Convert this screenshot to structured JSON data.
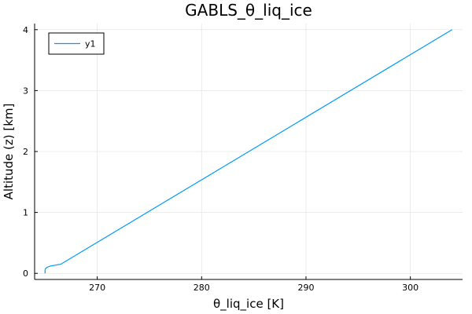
{
  "chart_data": {
    "type": "line",
    "title": "GABLS_θ_liq_ice",
    "xlabel": "θ_liq_ice [K]",
    "ylabel": "Altitude (z) [km]",
    "xlim": [
      264.0,
      305.0
    ],
    "ylim": [
      -0.1,
      4.1
    ],
    "xticks": [
      270,
      280,
      290,
      300
    ],
    "yticks": [
      0,
      1,
      2,
      3,
      4
    ],
    "grid": true,
    "legend_position": "top-left",
    "series": [
      {
        "name": "y1",
        "color": "#009AFA",
        "x": [
          265.0,
          265.0,
          265.0,
          265.05,
          265.2,
          265.5,
          266.5,
          304.0
        ],
        "y": [
          0.0,
          0.02,
          0.05,
          0.08,
          0.1,
          0.12,
          0.15,
          4.0
        ]
      }
    ]
  }
}
